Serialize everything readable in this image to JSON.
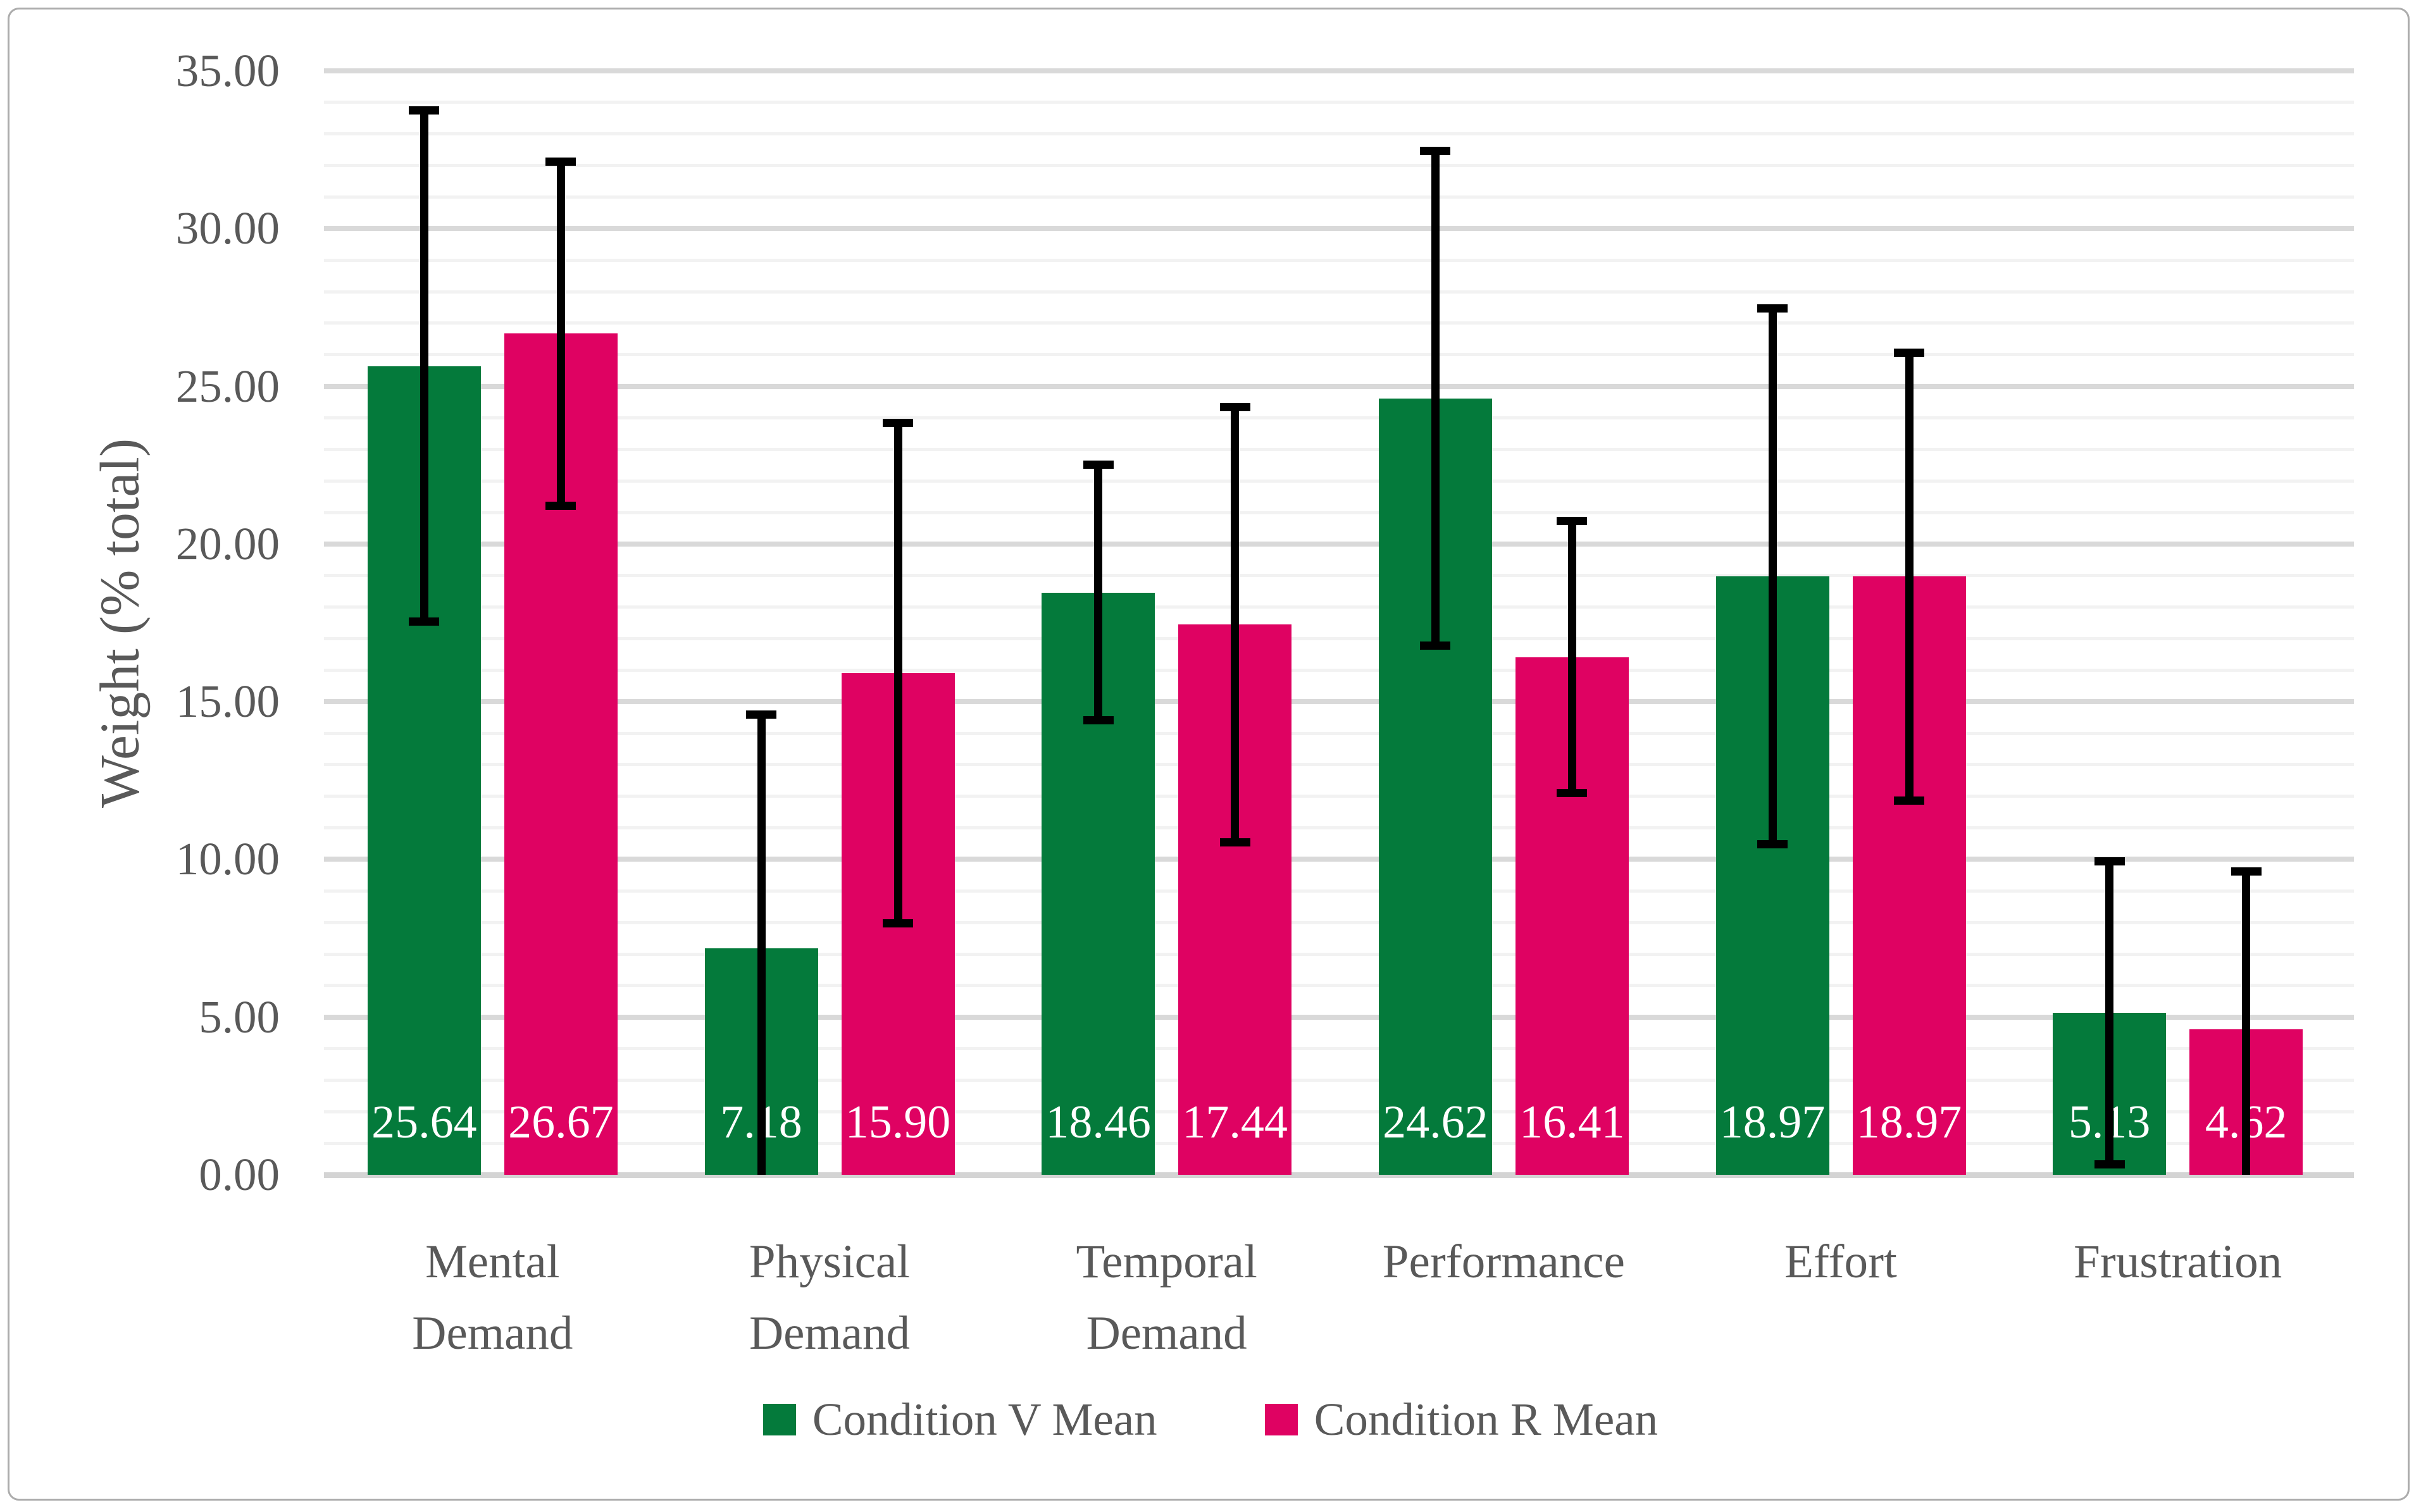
{
  "figure": {
    "background_color": "#FFFFFF",
    "border_color": "#ACACAC",
    "text_color": "#595959",
    "gridline_minor_color": "#F2F2F2",
    "gridline_major_color": "#D9D9D9",
    "axis_baseline_color": "#D4D4D4"
  },
  "chart_data": {
    "type": "bar",
    "title": "",
    "xlabel": "",
    "ylabel": "Weight (% total)",
    "ylim": [
      0,
      35
    ],
    "ytick_step": 5,
    "minor_gridline_step": 1,
    "ytick_labels": [
      "0.00",
      "5.00",
      "10.00",
      "15.00",
      "20.00",
      "25.00",
      "30.00",
      "35.00"
    ],
    "grid": "on",
    "legend_position": "bottom-center",
    "categories": [
      "Mental Demand",
      "Physical Demand",
      "Temporal Demand",
      "Performance",
      "Effort",
      "Frustration"
    ],
    "category_label_lines": [
      [
        "Mental",
        "Demand"
      ],
      [
        "Physical",
        "Demand"
      ],
      [
        "Temporal",
        "Demand"
      ],
      [
        "Performance"
      ],
      [
        "Effort"
      ],
      [
        "Frustration"
      ]
    ],
    "series": [
      {
        "name": "Condition V Mean",
        "color": "#047A3B",
        "values": [
          25.64,
          7.18,
          18.46,
          24.62,
          18.97,
          5.13
        ],
        "value_labels": [
          "25.64",
          "7.18",
          "18.46",
          "24.62",
          "18.97",
          "5.13"
        ],
        "error": [
          8.1,
          7.41,
          4.05,
          7.85,
          8.5,
          4.8
        ]
      },
      {
        "name": "Condition R Mean",
        "color": "#DF0262",
        "values": [
          26.67,
          15.9,
          17.44,
          16.41,
          18.97,
          4.62
        ],
        "value_labels": [
          "26.67",
          "15.90",
          "17.44",
          "16.41",
          "18.97",
          "4.62"
        ],
        "error": [
          5.45,
          7.93,
          6.9,
          4.31,
          7.1,
          5.0
        ]
      }
    ],
    "error_bars": {
      "style": "symmetric",
      "color": "#000000",
      "clipped_at_zero": true
    }
  }
}
